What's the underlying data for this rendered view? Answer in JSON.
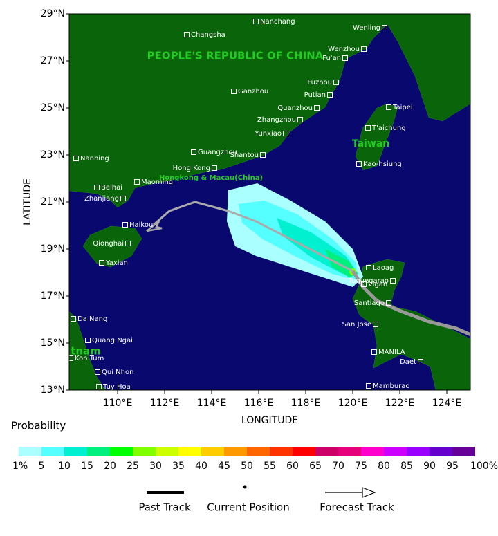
{
  "map": {
    "xlabel": "LONGITUDE",
    "ylabel": "LATITUDE",
    "xlim": [
      107.94,
      125
    ],
    "ylim": [
      13,
      29
    ],
    "xticks": [
      {
        "value": 110,
        "label": "110°E"
      },
      {
        "value": 112,
        "label": "112°E"
      },
      {
        "value": 114,
        "label": "114°E"
      },
      {
        "value": 116,
        "label": "116°E"
      },
      {
        "value": 118,
        "label": "118°E"
      },
      {
        "value": 120,
        "label": "120°E"
      },
      {
        "value": 122,
        "label": "122°E"
      },
      {
        "value": 124,
        "label": "124°E"
      }
    ],
    "yticks": [
      {
        "value": 13,
        "label": "13°N"
      },
      {
        "value": 15,
        "label": "15°N"
      },
      {
        "value": 17,
        "label": "17°N"
      },
      {
        "value": 19,
        "label": "19°N"
      },
      {
        "value": 21,
        "label": "21°N"
      },
      {
        "value": 23,
        "label": "23°N"
      },
      {
        "value": 25,
        "label": "25°N"
      },
      {
        "value": 27,
        "label": "27°N"
      },
      {
        "value": 29,
        "label": "29°N"
      }
    ],
    "regions": [
      "PEOPLE'S REPUBLIC OF CHINA",
      "Taiwan",
      "Hongkong & Macau(China)",
      "tnam"
    ],
    "cities": [
      "Nanchang",
      "Changsha",
      "Wenling",
      "Wenzhou",
      "Fu'an",
      "Fuzhou",
      "Putian",
      "Ganzhou",
      "Quanzhou",
      "Zhangzhou",
      "Taipei",
      "T'aichung",
      "Yunxiao",
      "Guangzhou",
      "Shantou",
      "Nanning",
      "Hong Kong",
      "Kao-hsiung",
      "Beihai",
      "Maoming",
      "Zhanjiang",
      "Haikou",
      "Qionghai",
      "Yaxian",
      "Laoag",
      "Tuguegarao",
      "Vigan",
      "Santiago",
      "San Jose",
      "Da Nang",
      "Quang Ngai",
      "MANILA",
      "Daet",
      "Kon Tum",
      "Qui Nhon",
      "Tuy Hoa",
      "Mamburao"
    ]
  },
  "colorbar": {
    "title": "Probability",
    "colors": [
      "#aaffff",
      "#55ffff",
      "#00f0d0",
      "#00f080",
      "#00ff00",
      "#80ff00",
      "#ccff00",
      "#ffff00",
      "#ffcc00",
      "#ff9900",
      "#ff6600",
      "#ff3300",
      "#ff0000",
      "#cc0066",
      "#e6007a",
      "#ff00cc",
      "#cc00ff",
      "#9900ff",
      "#6600cc",
      "#660099"
    ],
    "labels": [
      "1%",
      "5",
      "10",
      "15",
      "20",
      "25",
      "30",
      "35",
      "40",
      "45",
      "50",
      "55",
      "60",
      "65",
      "70",
      "75",
      "80",
      "85",
      "90",
      "95",
      "100%"
    ]
  },
  "legend": {
    "past_track": "Past Track",
    "current_position": "Current Position",
    "forecast_track": "Forecast Track"
  }
}
